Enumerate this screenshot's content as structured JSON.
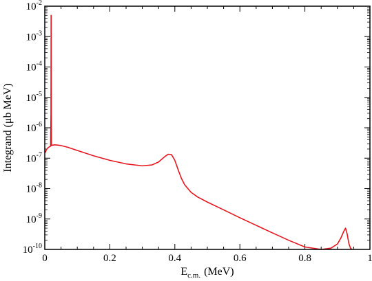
{
  "chart_data": {
    "type": "line",
    "title": "",
    "xlabel": {
      "main": "E",
      "subscript": "c.m.",
      "unit": "(MeV)"
    },
    "ylabel": "Integrand (μb MeV)",
    "xlim": [
      0,
      1
    ],
    "ylim": [
      1e-10,
      0.01
    ],
    "yscale": "log",
    "grid": false,
    "x_ticks": [
      {
        "value": 0,
        "label": "0"
      },
      {
        "value": 0.2,
        "label": "0.2"
      },
      {
        "value": 0.4,
        "label": "0.4"
      },
      {
        "value": 0.6,
        "label": "0.6"
      },
      {
        "value": 0.8,
        "label": "0.8"
      },
      {
        "value": 1,
        "label": "1"
      }
    ],
    "y_ticks": [
      {
        "value": 1e-10,
        "base": "10",
        "exp": "-10"
      },
      {
        "value": 1e-09,
        "base": "10",
        "exp": "-9"
      },
      {
        "value": 1e-08,
        "base": "10",
        "exp": "-8"
      },
      {
        "value": 1e-07,
        "base": "10",
        "exp": "-7"
      },
      {
        "value": 1e-06,
        "base": "10",
        "exp": "-6"
      },
      {
        "value": 1e-05,
        "base": "10",
        "exp": "-5"
      },
      {
        "value": 0.0001,
        "base": "10",
        "exp": "-4"
      },
      {
        "value": 0.001,
        "base": "10",
        "exp": "-3"
      },
      {
        "value": 0.01,
        "base": "10",
        "exp": "-2"
      }
    ],
    "series": [
      {
        "color": "#e8141c",
        "x": [
          0.001,
          0.005,
          0.01,
          0.015,
          0.018,
          0.019,
          0.0195,
          0.02,
          0.0205,
          0.021,
          0.022,
          0.025,
          0.03,
          0.04,
          0.05,
          0.07,
          0.1,
          0.15,
          0.2,
          0.25,
          0.3,
          0.33,
          0.35,
          0.37,
          0.38,
          0.39,
          0.4,
          0.41,
          0.42,
          0.43,
          0.45,
          0.47,
          0.5,
          0.55,
          0.6,
          0.65,
          0.7,
          0.75,
          0.8,
          0.85,
          0.88,
          0.9,
          0.91,
          0.92,
          0.925,
          0.93,
          0.935,
          0.94,
          0.945
        ],
        "y": [
          1.5e-07,
          1.9e-07,
          2.2e-07,
          2.4e-07,
          2.5e-07,
          3e-06,
          0.005,
          3e-06,
          2.6e-07,
          2.6e-07,
          2.65e-07,
          2.7e-07,
          2.75e-07,
          2.7e-07,
          2.6e-07,
          2.3e-07,
          1.8e-07,
          1.2e-07,
          8.5e-08,
          6.5e-08,
          5.6e-08,
          6e-08,
          7.5e-08,
          1.15e-07,
          1.35e-07,
          1.3e-07,
          8.5e-08,
          4.2e-08,
          2.2e-08,
          1.35e-08,
          7.5e-09,
          5.3e-09,
          3.6e-09,
          2e-09,
          1.1e-09,
          6.2e-10,
          3.5e-10,
          2e-10,
          1.2e-10,
          1e-10,
          1.1e-10,
          1.5e-10,
          2.3e-10,
          4e-10,
          5e-10,
          3.2e-10,
          1.6e-10,
          1.1e-10,
          1e-10
        ]
      }
    ]
  }
}
